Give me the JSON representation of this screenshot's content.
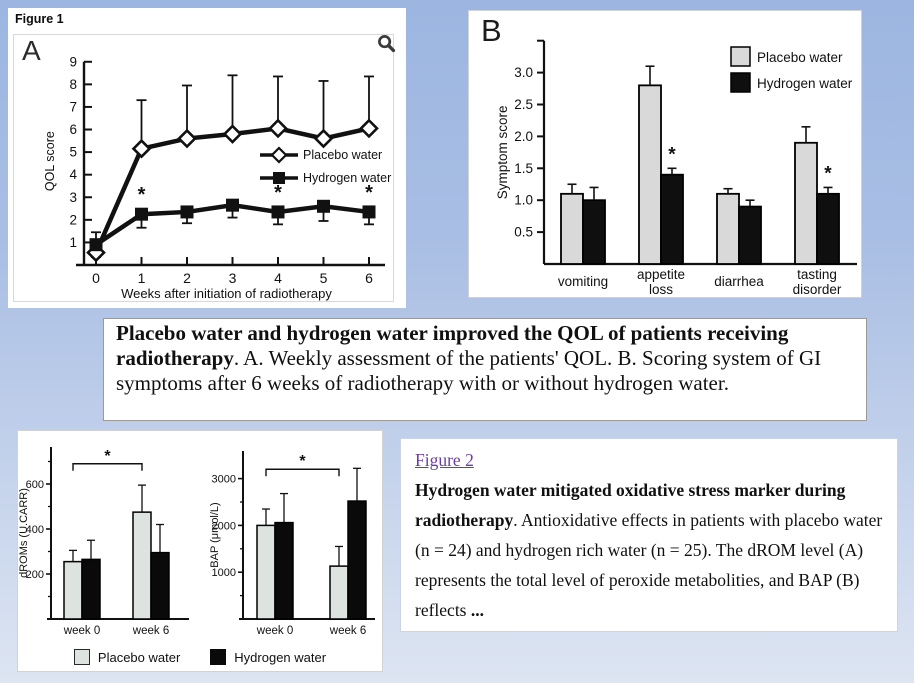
{
  "page": {
    "figure1_label": "Figure 1"
  },
  "icons": {
    "zoom_icon": "magnifying-glass"
  },
  "colors": {
    "background_top": "#9cb6e1",
    "background_bottom": "#dde5f2",
    "panel_white": "#ffffff",
    "placebo_gray_b": "#d9d9d9",
    "placebo_gray_small": "#dde3de",
    "hydrogen_black": "#0f0f0f",
    "link_purple": "#6a3da6"
  },
  "caption1": {
    "bold_text": "Placebo water and hydrogen water improved the QOL of patients receiving radiotherapy",
    "rest_text": ". A. Weekly assessment of the patients' QOL. B. Scoring system of GI symptoms after 6 weeks of radiotherapy with or without hydrogen water."
  },
  "caption2": {
    "link_text": "Figure 2",
    "bold_text": "Hydrogen water mitigated oxidative stress marker during radiotherapy",
    "rest_text": ". Antioxidative effects in patients with placebo water (n = 24) and hydrogen rich water (n = 25). The dROM level (A) represents the total level of peroxide metabolities, and BAP (B) reflects ",
    "trail_bold": "..."
  },
  "legend_bottom": [
    "Placebo water",
    "Hydrogen water"
  ],
  "chart_data": [
    {
      "id": "qol",
      "type": "line",
      "panel_label": "A",
      "title": "",
      "xlabel": "Weeks after initiation of radiotherapy",
      "ylabel": "QOL score",
      "x": [
        0,
        1,
        2,
        3,
        4,
        5,
        6
      ],
      "yticks": [
        1,
        2,
        3,
        4,
        5,
        6,
        7,
        8,
        9
      ],
      "ylim": [
        0,
        9.3
      ],
      "legend_position": "inside right",
      "series": [
        {
          "name": "Placebo water",
          "marker": "diamond",
          "values": [
            0.55,
            5.15,
            5.6,
            5.8,
            6.05,
            5.6,
            6.05
          ],
          "err_up_to": [
            null,
            7.3,
            7.95,
            8.4,
            8.35,
            8.15,
            8.35
          ],
          "err_down_to": [
            null,
            null,
            null,
            null,
            null,
            null,
            null
          ]
        },
        {
          "name": "Hydrogen water",
          "marker": "square",
          "values": [
            0.9,
            2.25,
            2.35,
            2.65,
            2.35,
            2.6,
            2.35
          ],
          "err_up_to": [
            1.45,
            null,
            null,
            null,
            null,
            null,
            null
          ],
          "err_down_to": [
            0.35,
            1.65,
            1.85,
            2.1,
            1.8,
            1.95,
            1.8
          ]
        }
      ],
      "asterisk_weeks": [
        1,
        4,
        6
      ]
    },
    {
      "id": "symptom",
      "type": "grouped_bar",
      "panel_label": "B",
      "ylabel": "Symptom score",
      "categories": [
        "vomiting",
        "appetite\nloss",
        "diarrhea",
        "tasting\ndisorder"
      ],
      "yticks": [
        0.5,
        1.0,
        1.5,
        2.0,
        2.5,
        3.0
      ],
      "ylim": [
        0,
        3.5
      ],
      "legend_position": "top right",
      "series": [
        {
          "name": "Placebo water",
          "color": "#d9d9d9",
          "values": [
            1.1,
            2.8,
            1.1,
            1.9
          ],
          "errors": [
            0.15,
            0.3,
            0.08,
            0.25
          ]
        },
        {
          "name": "Hydrogen water",
          "color": "#0f0f0f",
          "values": [
            1.0,
            1.4,
            0.9,
            1.1
          ],
          "errors": [
            0.2,
            0.1,
            0.1,
            0.1
          ]
        }
      ],
      "asterisk_categories": [
        1,
        3
      ],
      "asterisk_series": "Hydrogen water"
    },
    {
      "id": "droms",
      "type": "grouped_bar",
      "panel_label": "A (Figure 2)",
      "ylabel": "dROMs (U.CARR)",
      "categories": [
        "week 0",
        "week 6"
      ],
      "yticks": [
        200,
        400,
        600
      ],
      "minor_yticks": [
        100,
        300,
        500,
        700
      ],
      "ylim": [
        0,
        760
      ],
      "series": [
        {
          "name": "Placebo water",
          "color": "#dde3de",
          "values": [
            255,
            475
          ],
          "errors": [
            50,
            120
          ]
        },
        {
          "name": "Hydrogen water",
          "color": "#0a0a0a",
          "values": [
            265,
            295
          ],
          "errors": [
            85,
            125
          ]
        }
      ],
      "sig_bracket": {
        "label": "*",
        "series": "Placebo water",
        "between": [
          "week 0",
          "week 6"
        ],
        "at": 690
      }
    },
    {
      "id": "bap",
      "type": "grouped_bar",
      "panel_label": "B (Figure 2)",
      "ylabel": "BAP (μmol/L)",
      "categories": [
        "week 0",
        "week 6"
      ],
      "yticks": [
        1000,
        2000,
        3000
      ],
      "minor_yticks": [
        500,
        1500,
        2500
      ],
      "ylim": [
        0,
        3590
      ],
      "series": [
        {
          "name": "Placebo water",
          "color": "#dde3de",
          "values": [
            2000,
            1130
          ],
          "errors": [
            350,
            420
          ]
        },
        {
          "name": "Hydrogen water",
          "color": "#0a0a0a",
          "values": [
            2060,
            2520
          ],
          "errors": [
            620,
            700
          ]
        }
      ],
      "sig_bracket": {
        "label": "*",
        "series": "Placebo water",
        "between": [
          "week 0",
          "week 6"
        ],
        "at": 3200
      }
    }
  ]
}
